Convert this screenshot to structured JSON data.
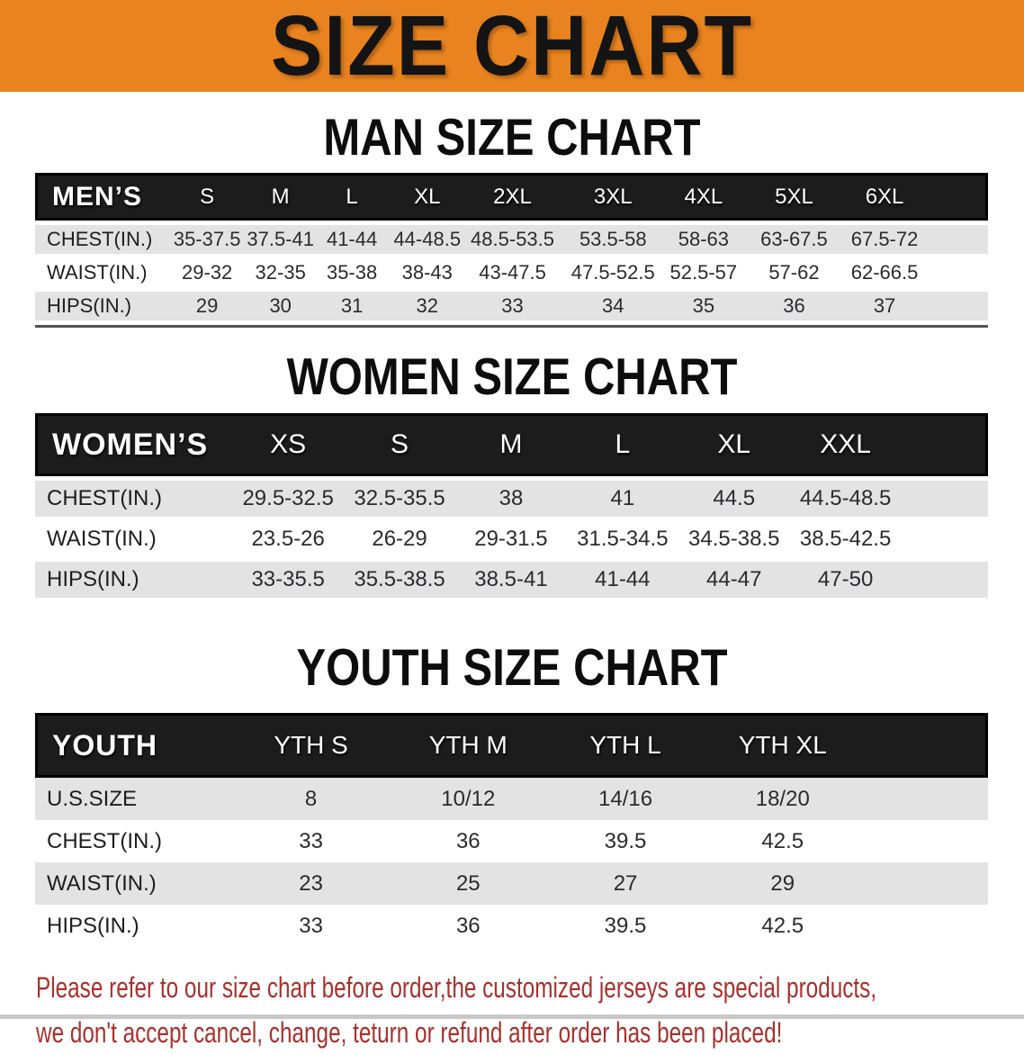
{
  "banner": {
    "title": "SIZE CHART"
  },
  "colors": {
    "banner_bg": "#E8831F",
    "header_band": "#1C1C1C",
    "row_shade": "#E3E3E4",
    "disclaimer_red": "#A8312C"
  },
  "sections": [
    {
      "title": "MAN SIZE CHART",
      "table": {
        "header_label": "MEN’S",
        "columns": [
          "S",
          "M",
          "L",
          "XL",
          "2XL",
          "3XL",
          "4XL",
          "5XL",
          "6XL"
        ],
        "rows": [
          {
            "label": "CHEST(IN.)",
            "values": [
              "35-37.5",
              "37.5-41",
              "41-44",
              "44-48.5",
              "48.5-53.5",
              "53.5-58",
              "58-63",
              "63-67.5",
              "67.5-72"
            ]
          },
          {
            "label": "WAIST(IN.)",
            "values": [
              "29-32",
              "32-35",
              "35-38",
              "38-43",
              "43-47.5",
              "47.5-52.5",
              "52.5-57",
              "57-62",
              "62-66.5"
            ]
          },
          {
            "label": "HIPS(IN.)",
            "values": [
              "29",
              "30",
              "31",
              "32",
              "33",
              "34",
              "35",
              "36",
              "37"
            ]
          }
        ]
      }
    },
    {
      "title": "WOMEN SIZE CHART",
      "table": {
        "header_label": "WOMEN’S",
        "columns": [
          "XS",
          "S",
          "M",
          "L",
          "XL",
          "XXL"
        ],
        "rows": [
          {
            "label": "CHEST(IN.)",
            "values": [
              "29.5-32.5",
              "32.5-35.5",
              "38",
              "41",
              "44.5",
              "44.5-48.5"
            ]
          },
          {
            "label": "WAIST(IN.)",
            "values": [
              "23.5-26",
              "26-29",
              "29-31.5",
              "31.5-34.5",
              "34.5-38.5",
              "38.5-42.5"
            ]
          },
          {
            "label": "HIPS(IN.)",
            "values": [
              "33-35.5",
              "35.5-38.5",
              "38.5-41",
              "41-44",
              "44-47",
              "47-50"
            ]
          }
        ]
      }
    },
    {
      "title": "YOUTH SIZE CHART",
      "table": {
        "header_label": "YOUTH",
        "columns": [
          "YTH S",
          "YTH M",
          "YTH L",
          "YTH XL"
        ],
        "rows": [
          {
            "label": "U.S.SIZE",
            "values": [
              "8",
              "10/12",
              "14/16",
              "18/20"
            ]
          },
          {
            "label": "CHEST(IN.)",
            "values": [
              "33",
              "36",
              "39.5",
              "42.5"
            ]
          },
          {
            "label": "WAIST(IN.)",
            "values": [
              "23",
              "25",
              "27",
              "29"
            ]
          },
          {
            "label": "HIPS(IN.)",
            "values": [
              "33",
              "36",
              "39.5",
              "42.5"
            ]
          }
        ]
      }
    }
  ],
  "footer": {
    "line1": "Please refer to our size chart before order,the customized jerseys are special products,",
    "line2": "we don't accept cancel, change, teturn or refund after order has been placed!"
  }
}
